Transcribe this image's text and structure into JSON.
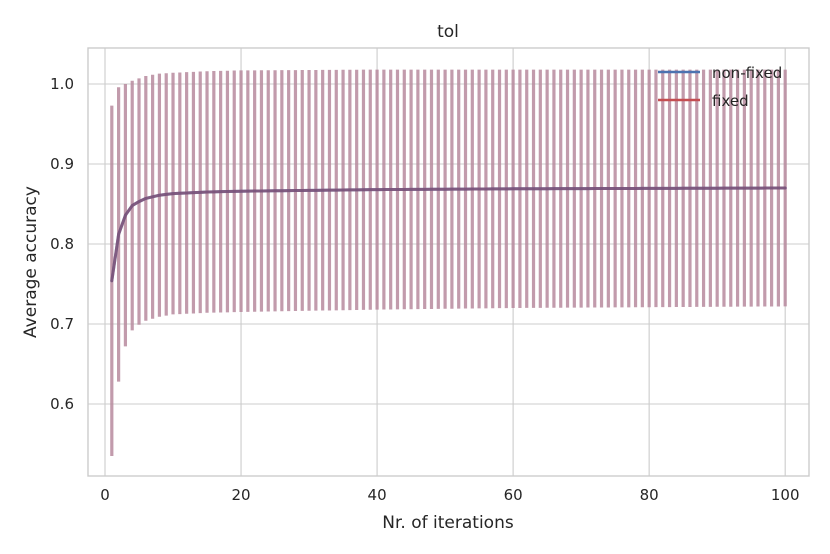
{
  "chart_data": {
    "type": "line",
    "title": "tol",
    "xlabel": "Nr. of iterations",
    "ylabel": "Average accuracy",
    "xlim": [
      -2.5,
      103.5
    ],
    "ylim": [
      0.51,
      1.045
    ],
    "xticks": [
      0,
      20,
      40,
      60,
      80,
      100
    ],
    "yticks": [
      0.6,
      0.7,
      0.8,
      0.9,
      1.0
    ],
    "xtick_labels": [
      "0",
      "20",
      "40",
      "60",
      "80",
      "100"
    ],
    "ytick_labels": [
      "0.6",
      "0.7",
      "0.8",
      "0.9",
      "1.0"
    ],
    "grid": true,
    "legend_position": "top-right",
    "error_bar_color": "#b78a9e",
    "series": [
      {
        "name": "non-fixed",
        "color": "#4c72b0",
        "mean_knots": [
          [
            1,
            0.754
          ],
          [
            2,
            0.812
          ],
          [
            3,
            0.836
          ],
          [
            4,
            0.848
          ],
          [
            5,
            0.853
          ],
          [
            6,
            0.857
          ],
          [
            8,
            0.861
          ],
          [
            10,
            0.863
          ],
          [
            15,
            0.865
          ],
          [
            20,
            0.866
          ],
          [
            40,
            0.868
          ],
          [
            60,
            0.869
          ],
          [
            100,
            0.87
          ]
        ],
        "error_band": "mean ± std",
        "upper_knots": [
          [
            1,
            0.973
          ],
          [
            2,
            0.996
          ],
          [
            3,
            1.0
          ],
          [
            4,
            1.004
          ],
          [
            5,
            1.007
          ],
          [
            6,
            1.01
          ],
          [
            8,
            1.013
          ],
          [
            10,
            1.014
          ],
          [
            15,
            1.016
          ],
          [
            20,
            1.017
          ],
          [
            40,
            1.018
          ],
          [
            100,
            1.018
          ]
        ]
      },
      {
        "name": "fixed",
        "color": "#c44e52",
        "mean_knots": [
          [
            1,
            0.754
          ],
          [
            2,
            0.812
          ],
          [
            3,
            0.836
          ],
          [
            4,
            0.848
          ],
          [
            5,
            0.853
          ],
          [
            6,
            0.857
          ],
          [
            8,
            0.861
          ],
          [
            10,
            0.863
          ],
          [
            15,
            0.865
          ],
          [
            20,
            0.866
          ],
          [
            40,
            0.868
          ],
          [
            60,
            0.869
          ],
          [
            100,
            0.87
          ]
        ],
        "error_band": "mean ± std",
        "upper_knots": [
          [
            1,
            0.973
          ],
          [
            2,
            0.996
          ],
          [
            3,
            1.0
          ],
          [
            4,
            1.004
          ],
          [
            5,
            1.007
          ],
          [
            6,
            1.01
          ],
          [
            8,
            1.013
          ],
          [
            10,
            1.014
          ],
          [
            15,
            1.016
          ],
          [
            20,
            1.017
          ],
          [
            40,
            1.018
          ],
          [
            100,
            1.018
          ]
        ]
      }
    ],
    "overlap_line_color": "#7c4f74"
  }
}
